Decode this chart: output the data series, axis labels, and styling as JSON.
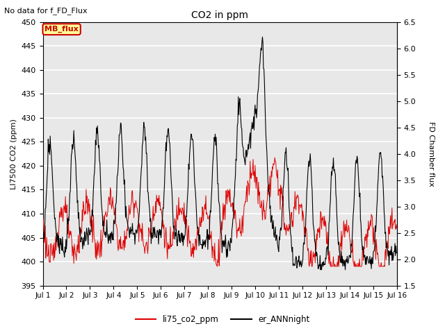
{
  "title": "CO2 in ppm",
  "subtitle": "No data for f_FD_Flux",
  "ylabel_left": "LI7500 CO2 (ppm)",
  "ylabel_right": "FD Chamber flux",
  "ylim_left": [
    395,
    450
  ],
  "ylim_right": [
    1.5,
    6.5
  ],
  "yticks_left": [
    395,
    400,
    405,
    410,
    415,
    420,
    425,
    430,
    435,
    440,
    445,
    450
  ],
  "yticks_right": [
    1.5,
    2.0,
    2.5,
    3.0,
    3.5,
    4.0,
    4.5,
    5.0,
    5.5,
    6.0,
    6.5
  ],
  "xtick_labels": [
    "Jul 1",
    "Jul 2",
    "Jul 3",
    "Jul 4",
    "Jul 5",
    "Jul 6",
    "Jul 7",
    "Jul 8",
    "Jul 9",
    "Jul 10",
    "Jul 11",
    "Jul 12",
    "Jul 13",
    "Jul 14",
    "Jul 15",
    "Jul 16"
  ],
  "legend_label_red": "li75_co2_ppm",
  "legend_label_black": "er_ANNnight",
  "mb_flux_label": "MB_flux",
  "background_color": "#e8e8e8",
  "line_color_red": "#dd0000",
  "line_color_black": "#000000",
  "grid_color": "#ffffff",
  "mb_flux_box_color": "#ffff99",
  "mb_flux_text_color": "#cc0000",
  "mb_flux_border_color": "#cc0000",
  "figsize": [
    6.4,
    4.8
  ],
  "dpi": 100
}
